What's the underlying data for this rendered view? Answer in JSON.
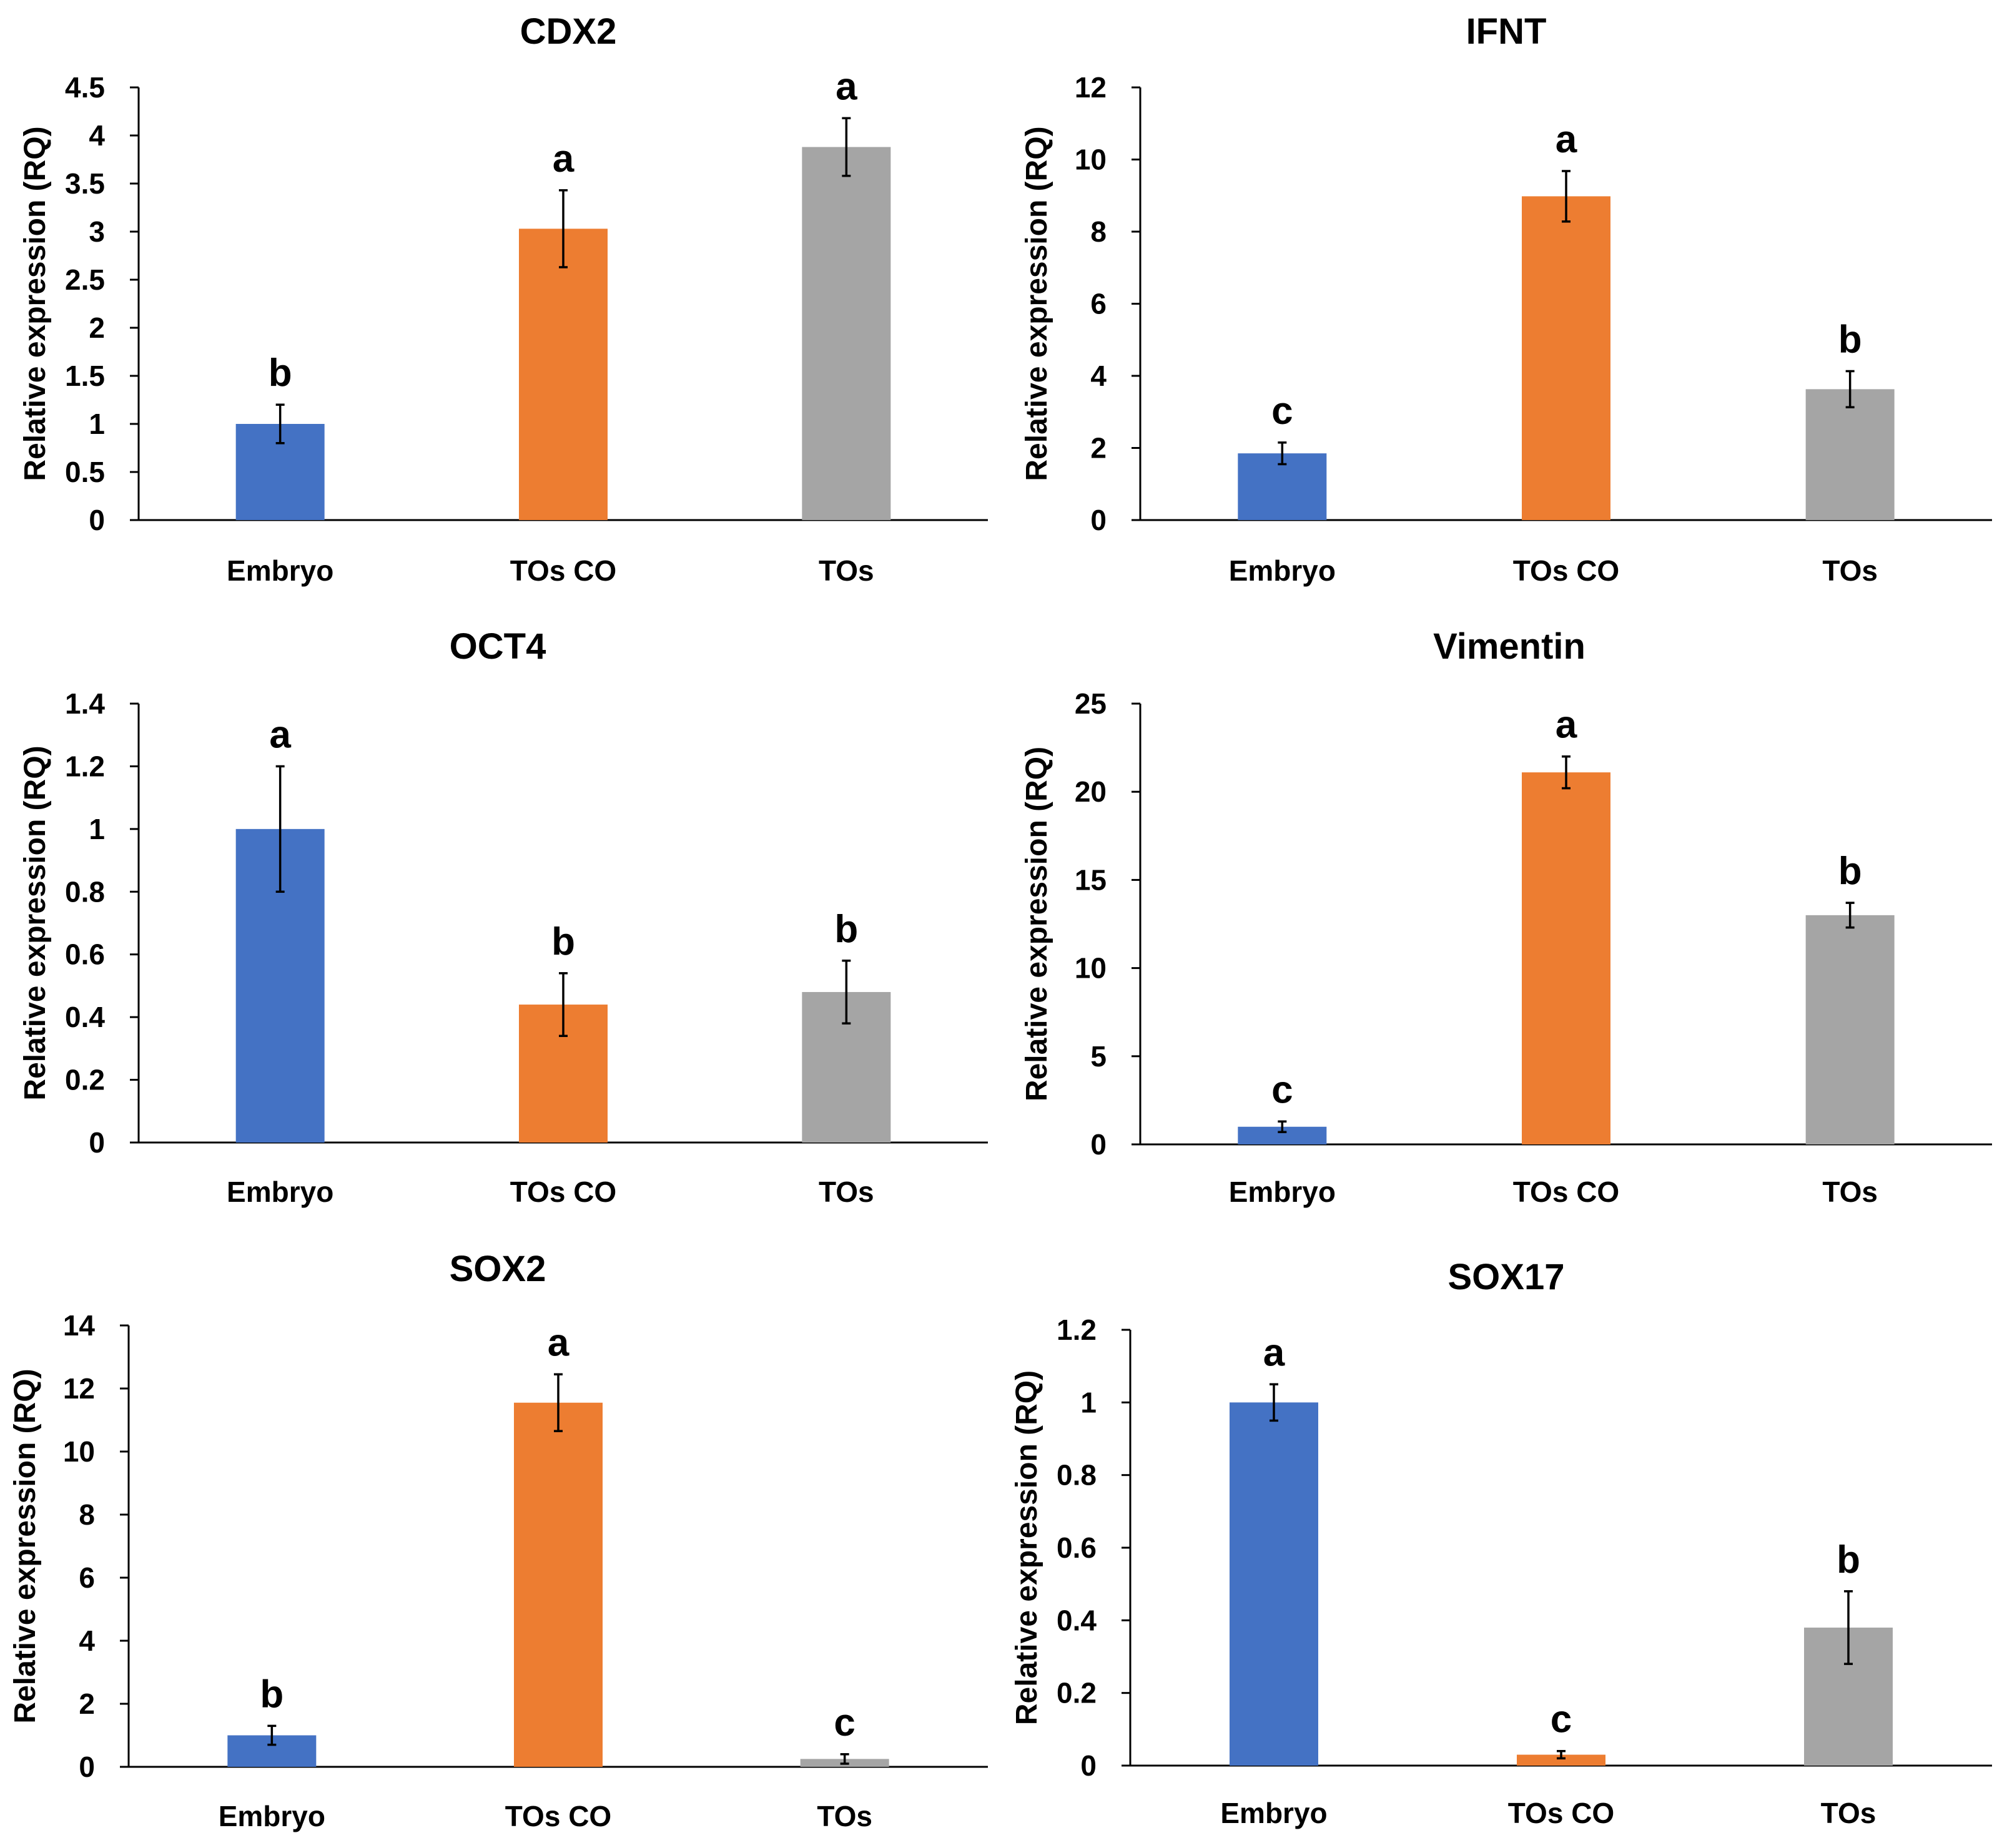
{
  "chart_data": [
    {
      "type": "bar",
      "title": "CDX2",
      "ylabel": "Relative expression (RQ)",
      "categories": [
        "Embryo",
        "TOs CO",
        "TOs"
      ],
      "values": [
        1.0,
        3.03,
        3.88
      ],
      "errors": [
        0.2,
        0.4,
        0.3
      ],
      "letters": [
        "b",
        "a",
        "a"
      ],
      "ylim": [
        0,
        4.5
      ],
      "yticks": [
        0,
        0.5,
        1,
        1.5,
        2,
        2.5,
        3,
        3.5,
        4,
        4.5
      ],
      "ytick_labels": [
        "0",
        "0.5",
        "1",
        "1.5",
        "2",
        "2.5",
        "3",
        "3.5",
        "4",
        "4.5"
      ]
    },
    {
      "type": "bar",
      "title": "IFNT",
      "ylabel": "Relative expression (RQ)",
      "categories": [
        "Embryo",
        "TOs CO",
        "TOs"
      ],
      "values": [
        1.85,
        8.98,
        3.63
      ],
      "errors": [
        0.3,
        0.7,
        0.5
      ],
      "letters": [
        "c",
        "a",
        "b"
      ],
      "ylim": [
        0,
        12
      ],
      "yticks": [
        0,
        2,
        4,
        6,
        8,
        10,
        12
      ],
      "ytick_labels": [
        "0",
        "2",
        "4",
        "6",
        "8",
        "10",
        "12"
      ]
    },
    {
      "type": "bar",
      "title": "OCT4",
      "ylabel": "Relative expression (RQ)",
      "categories": [
        "Embryo",
        "TOs CO",
        "TOs"
      ],
      "values": [
        1.0,
        0.44,
        0.48
      ],
      "errors": [
        0.2,
        0.1,
        0.1
      ],
      "letters": [
        "a",
        "b",
        "b"
      ],
      "ylim": [
        0,
        1.4
      ],
      "yticks": [
        0,
        0.2,
        0.4,
        0.6,
        0.8,
        1,
        1.2,
        1.4
      ],
      "ytick_labels": [
        "0",
        "0.2",
        "0.4",
        "0.6",
        "0.8",
        "1",
        "1.2",
        "1.4"
      ]
    },
    {
      "type": "bar",
      "title": "Vimentin",
      "ylabel": "Relative expression (RQ)",
      "categories": [
        "Embryo",
        "TOs CO",
        "TOs"
      ],
      "values": [
        1.0,
        21.1,
        13.0
      ],
      "errors": [
        0.3,
        0.9,
        0.7
      ],
      "letters": [
        "c",
        "a",
        "b"
      ],
      "ylim": [
        0,
        25
      ],
      "yticks": [
        0,
        5,
        10,
        15,
        20,
        25
      ],
      "ytick_labels": [
        "0",
        "5",
        "10",
        "15",
        "20",
        "25"
      ]
    },
    {
      "type": "bar",
      "title": "SOX2",
      "ylabel": "Relative expression (RQ)",
      "categories": [
        "Embryo",
        "TOs CO",
        "TOs"
      ],
      "values": [
        1.0,
        11.55,
        0.25
      ],
      "errors": [
        0.3,
        0.9,
        0.15
      ],
      "letters": [
        "b",
        "a",
        "c"
      ],
      "ylim": [
        0,
        14
      ],
      "yticks": [
        0,
        2,
        4,
        6,
        8,
        10,
        12,
        14
      ],
      "ytick_labels": [
        "0",
        "2",
        "4",
        "6",
        "8",
        "10",
        "12",
        "14"
      ]
    },
    {
      "type": "bar",
      "title": "SOX17",
      "ylabel": "Relative expression (RQ)",
      "categories": [
        "Embryo",
        "TOs CO",
        "TOs"
      ],
      "values": [
        1.0,
        0.03,
        0.38
      ],
      "errors": [
        0.05,
        0.01,
        0.1
      ],
      "letters": [
        "a",
        "c",
        "b"
      ],
      "ylim": [
        0,
        1.2
      ],
      "yticks": [
        0,
        0.2,
        0.4,
        0.6,
        0.8,
        1,
        1.2
      ],
      "ytick_labels": [
        "0",
        "0.2",
        "0.4",
        "0.6",
        "0.8",
        "1",
        "1.2"
      ]
    }
  ],
  "colors": {
    "Embryo": "#4472C4",
    "TOs CO": "#ED7D31",
    "TOs": "#A5A5A5"
  }
}
